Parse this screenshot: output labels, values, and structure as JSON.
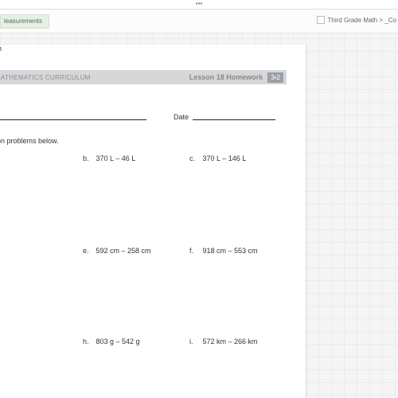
{
  "topbar": {
    "dots": "•••"
  },
  "secondrow": {
    "leftTab": "leasurements",
    "breadcrumb": "Third Grade Math > _Co"
  },
  "banner": {
    "curriculum": "MATHEMATICS CURRICULUM",
    "lesson": "Lesson 18 Homework",
    "badge": "3•2"
  },
  "labels": {
    "date": "Date",
    "instruction": "ion problems below."
  },
  "problems": {
    "b": {
      "label": "b.",
      "text": "370 L – 46 L"
    },
    "c": {
      "label": "c.",
      "text": "370 L – 146 L"
    },
    "d": {
      "label": "",
      "text": "m"
    },
    "e": {
      "label": "e.",
      "text": "592 cm – 258 cm"
    },
    "f": {
      "label": "f.",
      "text": "918 cm – 553 cm"
    },
    "h": {
      "label": "h.",
      "text": "803 g – 542 g"
    },
    "i": {
      "label": "i.",
      "text": "572 km – 266 km"
    },
    "km": "km"
  }
}
